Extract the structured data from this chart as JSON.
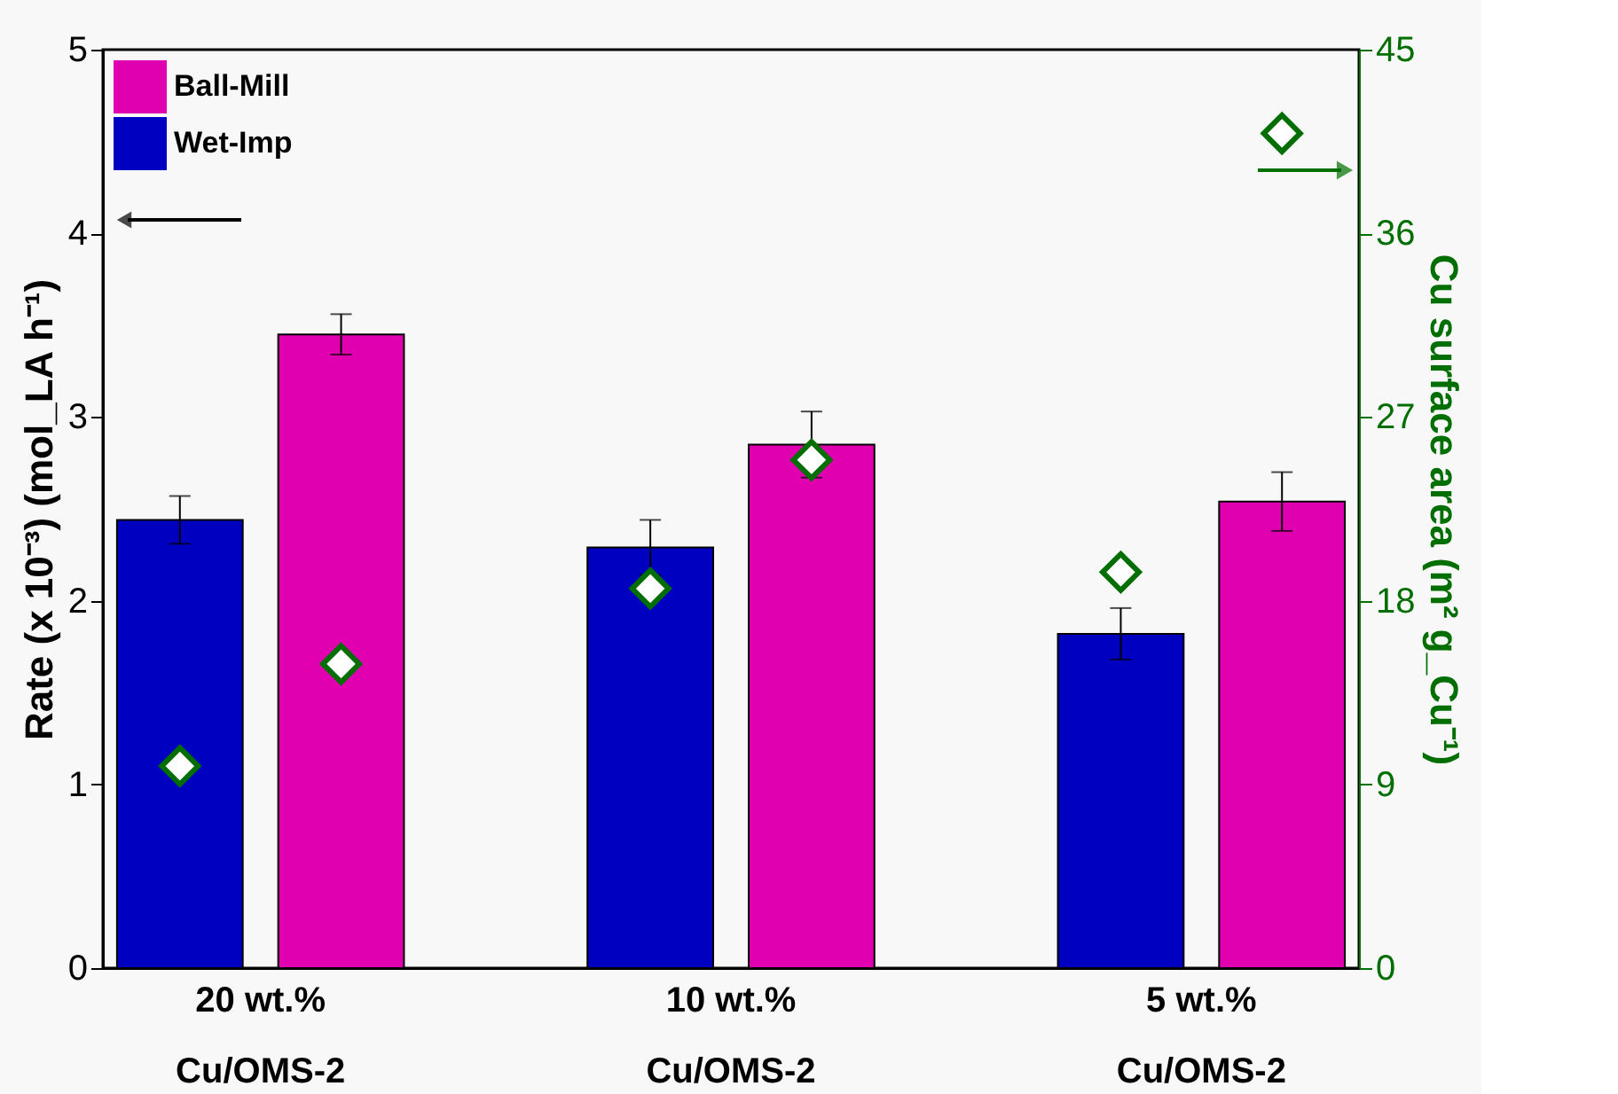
{
  "chart_data": {
    "type": "bar",
    "categories": [
      "20 wt.%\nCu/OMS-2",
      "10 wt.%\nCu/OMS-2",
      "5 wt.%\nCu/OMS-2"
    ],
    "ylabel": "Rate (x 10⁻³) (mol_LA h⁻¹)",
    "y2label": "Cu surface area (m² g_Cu⁻¹)",
    "ylim": [
      0,
      5
    ],
    "yticks": [
      0,
      1,
      2,
      3,
      4,
      5
    ],
    "y2lim": [
      0,
      45
    ],
    "y2ticks": [
      0,
      9,
      18,
      27,
      36,
      45
    ],
    "legend": "top left",
    "grid": false,
    "series": [
      {
        "name": "Wet-Imp",
        "color": "#0000c0",
        "values": [
          2.44,
          2.29,
          1.82
        ],
        "errors": [
          0.13,
          0.15,
          0.14
        ]
      },
      {
        "name": "Ball-Mill",
        "color": "#e000b0",
        "values": [
          3.45,
          2.85,
          2.54
        ],
        "errors": [
          0.11,
          0.18,
          0.16
        ]
      },
      {
        "type": "scatter",
        "axis": "y2",
        "marker": "diamond",
        "color": "#006e00",
        "values": [
          9.9,
          18.6,
          19.4
        ]
      },
      {
        "type": "scatter",
        "axis": "y2",
        "marker": "diamond",
        "color": "#006e00",
        "values": [
          14.9,
          24.9,
          40.9
        ]
      }
    ]
  }
}
